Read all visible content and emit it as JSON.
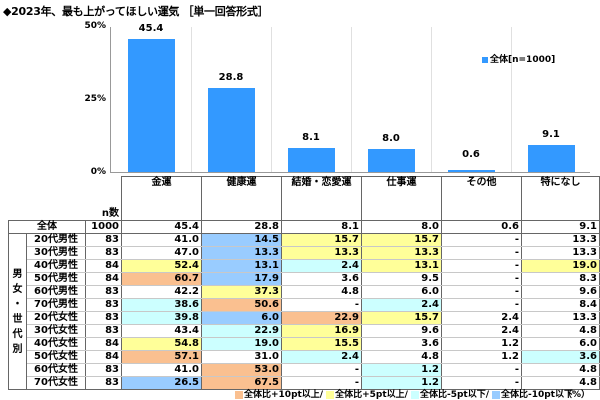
{
  "title": "◆2023年、最も上がってほしい運気 ［単一回答形式］",
  "chart_data": {
    "type": "bar",
    "title": "2023年、最も上がってほしい運気",
    "categories": [
      "金運",
      "健康運",
      "結婚・恋愛運",
      "仕事運",
      "その他",
      "特になし"
    ],
    "series": [
      {
        "name": "全体[n=1000]",
        "values": [
          45.4,
          28.8,
          8.1,
          8.0,
          0.6,
          9.1
        ]
      }
    ],
    "value_labels": [
      "45.4",
      "28.8",
      "8.1",
      "8.0",
      "0.6",
      "9.1"
    ],
    "ylim": [
      0,
      50
    ],
    "yticks": [
      "50%",
      "25%",
      "0%"
    ],
    "xlabel": "",
    "ylabel": "",
    "legend_position": "upper-right",
    "grid": "vertical",
    "bar_color": "#3399ff"
  },
  "legend": {
    "label": "全体[n=1000]"
  },
  "table": {
    "n_header": "n数",
    "columns": [
      "金運",
      "健康運",
      "結婚・恋愛運",
      "仕事運",
      "その他",
      "特になし"
    ],
    "group_label": "男女・世代別",
    "total": {
      "label": "全体",
      "n": "1000",
      "values": [
        "45.4",
        "28.8",
        "8.1",
        "8.0",
        "0.6",
        "9.1"
      ]
    },
    "rows": [
      {
        "label": "20代男性",
        "n": "83",
        "values": [
          "41.0",
          "14.5",
          "15.7",
          "15.7",
          "-",
          "13.3"
        ],
        "colors": [
          "",
          "b",
          "y",
          "y",
          "",
          ""
        ]
      },
      {
        "label": "30代男性",
        "n": "83",
        "values": [
          "47.0",
          "13.3",
          "13.3",
          "13.3",
          "-",
          "13.3"
        ],
        "colors": [
          "",
          "b",
          "y",
          "y",
          "",
          ""
        ]
      },
      {
        "label": "40代男性",
        "n": "84",
        "values": [
          "52.4",
          "13.1",
          "2.4",
          "13.1",
          "-",
          "19.0"
        ],
        "colors": [
          "y",
          "b",
          "c",
          "y",
          "",
          "y"
        ]
      },
      {
        "label": "50代男性",
        "n": "84",
        "values": [
          "60.7",
          "17.9",
          "3.6",
          "9.5",
          "-",
          "8.3"
        ],
        "colors": [
          "o",
          "b",
          "",
          "",
          "",
          ""
        ]
      },
      {
        "label": "60代男性",
        "n": "83",
        "values": [
          "42.2",
          "37.3",
          "4.8",
          "6.0",
          "-",
          "9.6"
        ],
        "colors": [
          "",
          "y",
          "",
          "",
          "",
          ""
        ]
      },
      {
        "label": "70代男性",
        "n": "83",
        "values": [
          "38.6",
          "50.6",
          "-",
          "2.4",
          "-",
          "8.4"
        ],
        "colors": [
          "c",
          "o",
          "",
          "c",
          "",
          ""
        ]
      },
      {
        "label": "20代女性",
        "n": "83",
        "values": [
          "39.8",
          "6.0",
          "22.9",
          "15.7",
          "2.4",
          "13.3"
        ],
        "colors": [
          "c",
          "b",
          "o",
          "y",
          "",
          ""
        ]
      },
      {
        "label": "30代女性",
        "n": "83",
        "values": [
          "43.4",
          "22.9",
          "16.9",
          "9.6",
          "2.4",
          "4.8"
        ],
        "colors": [
          "",
          "c",
          "y",
          "",
          "",
          ""
        ]
      },
      {
        "label": "40代女性",
        "n": "84",
        "values": [
          "54.8",
          "19.0",
          "15.5",
          "3.6",
          "1.2",
          "6.0"
        ],
        "colors": [
          "y",
          "c",
          "y",
          "",
          "",
          ""
        ]
      },
      {
        "label": "50代女性",
        "n": "84",
        "values": [
          "57.1",
          "31.0",
          "2.4",
          "4.8",
          "1.2",
          "3.6"
        ],
        "colors": [
          "o",
          "",
          "c",
          "",
          "",
          "c"
        ]
      },
      {
        "label": "60代女性",
        "n": "83",
        "values": [
          "41.0",
          "53.0",
          "-",
          "1.2",
          "-",
          "4.8"
        ],
        "colors": [
          "",
          "o",
          "",
          "c",
          "",
          ""
        ]
      },
      {
        "label": "70代女性",
        "n": "83",
        "values": [
          "26.5",
          "67.5",
          "-",
          "1.2",
          "-",
          "4.8"
        ],
        "colors": [
          "b",
          "o",
          "",
          "c",
          "",
          ""
        ]
      }
    ]
  },
  "footer": {
    "items": [
      {
        "label": "全体比+10pt以上/",
        "color": "#fac090"
      },
      {
        "label": "全体比+5pt以上/",
        "color": "#ffff99"
      },
      {
        "label": "全体比-5pt以下/",
        "color": "#ccffff"
      },
      {
        "label": "全体比-10pt以下",
        "color": "#99ccff"
      }
    ],
    "unit": "（%）"
  }
}
